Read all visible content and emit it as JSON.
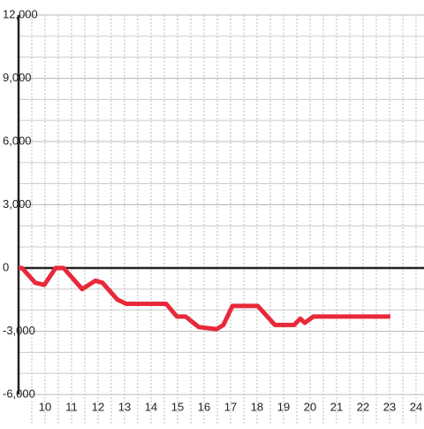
{
  "chart_data": {
    "type": "line",
    "x": [
      9,
      9.13,
      9.63,
      9.97,
      10.4,
      10.7,
      11.4,
      11.9,
      12.17,
      12.73,
      13.07,
      14.57,
      14.97,
      15.3,
      15.8,
      16.47,
      16.73,
      17.07,
      18.03,
      18.67,
      19.4,
      19.63,
      19.8,
      20.13,
      20.3,
      23.03
    ],
    "series": [
      {
        "color": "#e8293a",
        "values": [
          0,
          0,
          -700,
          -800,
          0,
          0,
          -1000,
          -600,
          -700,
          -1500,
          -1700,
          -1700,
          -2300,
          -2300,
          -2800,
          -2900,
          -2700,
          -1800,
          -1800,
          -2700,
          -2700,
          -2400,
          -2600,
          -2300,
          -2300,
          -2300
        ]
      }
    ],
    "xlim": [
      9,
      24.3
    ],
    "xticks": [
      10,
      11,
      12,
      13,
      14,
      15,
      16,
      17,
      18,
      19,
      20,
      21,
      22,
      23,
      24
    ],
    "ylim": [
      -6000,
      12000
    ],
    "yticks": [
      {
        "value": -6000,
        "label": "-6,000"
      },
      {
        "value": -3000,
        "label": "-3,000"
      },
      0,
      {
        "value": 3000,
        "label": "3,000"
      },
      {
        "value": 6000,
        "label": "6,000"
      },
      {
        "value": 9000,
        "label": "9,000"
      },
      {
        "value": 12000,
        "label": "12,000"
      }
    ],
    "grid": true
  }
}
